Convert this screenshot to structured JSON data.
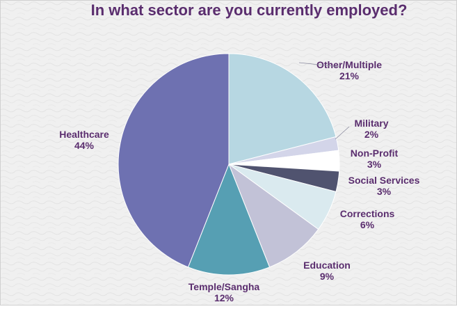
{
  "chart_data": {
    "type": "pie",
    "title": "In what sector are you currently employed?",
    "start_angle_deg": 0,
    "direction": "clockwise",
    "slices": [
      {
        "label": "Other/Multiple",
        "value": 21,
        "pct_label": "21%",
        "color": "#B7D7E2"
      },
      {
        "label": "Military",
        "value": 2,
        "pct_label": "2%",
        "color": "#D3D5E9"
      },
      {
        "label": "Non-Profit",
        "value": 3,
        "pct_label": "3%",
        "color": "#FFFFFF"
      },
      {
        "label": "Social Services",
        "value": 3,
        "pct_label": "3%",
        "color": "#50536F"
      },
      {
        "label": "Corrections",
        "value": 6,
        "pct_label": "6%",
        "color": "#DAEAEF"
      },
      {
        "label": "Education",
        "value": 9,
        "pct_label": "9%",
        "color": "#C2C2D7"
      },
      {
        "label": "Temple/Sangha",
        "value": 12,
        "pct_label": "12%",
        "color": "#569FB3"
      },
      {
        "label": "Healthcare",
        "value": 44,
        "pct_label": "44%",
        "color": "#6E71B1"
      }
    ],
    "colors": {
      "title": "#5A2D6E",
      "label": "#5A2D6E",
      "background": "#F1F1F1",
      "border": "#D0D0D0"
    }
  }
}
